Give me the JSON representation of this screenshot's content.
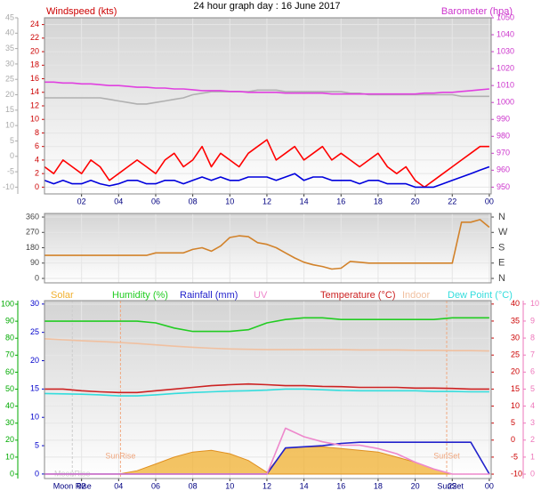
{
  "title": "24 hour graph day : 16 June 2017",
  "chart_data": [
    {
      "type": "line",
      "title": "Windspeed (kts)",
      "y2label": "Barometer (hpa)",
      "grid": true,
      "x": [
        0,
        0.5,
        1,
        1.5,
        2,
        2.5,
        3,
        3.5,
        4,
        4.5,
        5,
        5.5,
        6,
        6.5,
        7,
        7.5,
        8,
        8.5,
        9,
        9.5,
        10,
        10.5,
        11,
        11.5,
        12,
        12.5,
        13,
        13.5,
        14,
        14.5,
        15,
        15.5,
        16,
        16.5,
        17,
        17.5,
        18,
        18.5,
        19,
        19.5,
        20,
        20.5,
        21,
        21.5,
        22,
        22.5,
        23,
        23.5,
        24
      ],
      "xlim": [
        0,
        24.1
      ],
      "xticks": [
        {
          "value": 2,
          "label": "02"
        },
        {
          "value": 4,
          "label": "04"
        },
        {
          "value": 6,
          "label": "06"
        },
        {
          "value": 8,
          "label": "08"
        },
        10,
        12,
        14,
        16,
        18,
        20,
        22,
        {
          "value": 24,
          "label": "00"
        }
      ],
      "ylim": [
        -1,
        25
      ],
      "yticks": [
        0,
        2,
        4,
        6,
        8,
        10,
        12,
        14,
        16,
        18,
        20,
        22,
        24
      ],
      "ycolor": "#cc0000",
      "y2lim": [
        946,
        1050
      ],
      "y2ticks": [
        950,
        960,
        970,
        980,
        990,
        1000,
        1010,
        1020,
        1030,
        1040,
        1050
      ],
      "y2color": "#cc33cc",
      "y3lim": [
        -12.2,
        45
      ],
      "y3ticks": [
        -10,
        -5,
        0,
        5,
        10,
        15,
        20,
        25,
        30,
        35,
        40,
        45
      ],
      "y3color": "#aaaaaa",
      "series": [
        {
          "color": "#b0b0b0",
          "axis": "y3",
          "values": [
            19,
            19,
            19,
            19,
            19,
            19,
            19,
            18.5,
            18,
            17.5,
            17,
            17,
            17.5,
            18,
            18.5,
            19,
            20,
            20.5,
            21,
            21,
            21,
            21,
            21,
            21.5,
            21.5,
            21.5,
            21,
            21,
            21,
            21,
            21,
            21,
            21,
            20.5,
            20.5,
            20,
            20,
            20,
            20,
            20,
            20,
            20,
            20,
            20,
            20,
            19.5,
            19.5,
            19.5,
            19.5
          ]
        },
        {
          "color": "#e040e0",
          "axis": "y2",
          "values": [
            1012,
            1012,
            1011.5,
            1011.5,
            1011,
            1011,
            1010.5,
            1010,
            1010,
            1009.5,
            1009,
            1009,
            1008.5,
            1008.5,
            1008,
            1008,
            1007.5,
            1007,
            1007,
            1007,
            1006.5,
            1006.5,
            1006,
            1006,
            1006,
            1006,
            1005.5,
            1005.5,
            1005.5,
            1005.5,
            1005.5,
            1005,
            1005,
            1005,
            1005,
            1005,
            1005,
            1005,
            1005,
            1005,
            1005,
            1005.5,
            1005.5,
            1006,
            1006,
            1006.5,
            1007,
            1007.5,
            1008
          ]
        },
        {
          "color": "#ff0000",
          "values": [
            3,
            2,
            4,
            3,
            2,
            4,
            3,
            1,
            2,
            3,
            4,
            3,
            2,
            4,
            5,
            3,
            4,
            6,
            3,
            5,
            4,
            3,
            5,
            6,
            7,
            4,
            5,
            6,
            4,
            5,
            6,
            4,
            5,
            4,
            3,
            4,
            5,
            3,
            2,
            3,
            1,
            0,
            1,
            2,
            3,
            4,
            5,
            6,
            6
          ]
        },
        {
          "color": "#0000dd",
          "values": [
            1,
            0.5,
            1,
            0.5,
            0.5,
            1,
            0.5,
            0.2,
            0.5,
            1,
            1,
            0.5,
            0.5,
            1,
            1,
            0.5,
            1,
            1.5,
            1,
            1.5,
            1,
            1,
            1.5,
            1.5,
            1.5,
            1,
            1.5,
            2,
            1,
            1.5,
            1.5,
            1,
            1,
            1,
            0.5,
            1,
            1,
            0.5,
            0.5,
            0.5,
            0,
            0,
            0,
            0.5,
            1,
            1.5,
            2,
            2.5,
            3
          ]
        }
      ]
    },
    {
      "type": "line",
      "grid": true,
      "x": [
        0,
        0.5,
        1,
        1.5,
        2,
        2.5,
        3,
        3.5,
        4,
        4.5,
        5,
        5.5,
        6,
        6.5,
        7,
        7.5,
        8,
        8.5,
        9,
        9.5,
        10,
        10.5,
        11,
        11.5,
        12,
        12.5,
        13,
        13.5,
        14,
        14.5,
        15,
        15.5,
        16,
        16.5,
        17,
        17.5,
        18,
        18.5,
        19,
        19.5,
        20,
        20.5,
        21,
        21.5,
        22,
        22.5,
        23,
        23.5,
        24
      ],
      "xlim": [
        0,
        24.1
      ],
      "ylim": [
        -26,
        381
      ],
      "yticks": [
        0,
        90,
        180,
        270,
        360
      ],
      "ycolor": "#444444",
      "y2lim": [
        -26,
        381
      ],
      "y2ticks": [
        {
          "value": 0,
          "label": "N"
        },
        {
          "value": 90,
          "label": "E"
        },
        {
          "value": 180,
          "label": "S"
        },
        {
          "value": 270,
          "label": "W"
        },
        {
          "value": 360,
          "label": "N"
        }
      ],
      "y2color": "#444444",
      "series": [
        {
          "color": "#d2822a",
          "values": [
            135,
            135,
            135,
            135,
            135,
            135,
            135,
            135,
            135,
            135,
            135,
            135,
            150,
            150,
            150,
            150,
            170,
            180,
            160,
            190,
            240,
            250,
            245,
            210,
            200,
            180,
            150,
            120,
            95,
            80,
            70,
            55,
            60,
            100,
            95,
            90,
            90,
            90,
            90,
            90,
            90,
            90,
            90,
            90,
            90,
            330,
            330,
            345,
            300
          ]
        }
      ]
    },
    {
      "type": "line",
      "grid": true,
      "x": [
        0,
        1,
        2,
        3,
        4,
        5,
        6,
        7,
        8,
        9,
        10,
        11,
        12,
        13,
        14,
        15,
        16,
        17,
        18,
        19,
        20,
        21,
        22,
        23,
        24
      ],
      "xlim": [
        0,
        24.1
      ],
      "xticks": [
        {
          "value": 2,
          "label": "02"
        },
        {
          "value": 4,
          "label": "04"
        },
        {
          "value": 6,
          "label": "06"
        },
        {
          "value": 8,
          "label": "08"
        },
        10,
        12,
        14,
        16,
        18,
        20,
        22,
        {
          "value": 24,
          "label": "00"
        }
      ],
      "ylim": [
        -2.6,
        102.1
      ],
      "yticks": [
        0,
        10,
        20,
        30,
        40,
        50,
        60,
        70,
        80,
        90,
        100
      ],
      "ycolor": "#00aa00",
      "y2lim": [
        -11.3,
        41
      ],
      "y2ticks": [
        -10,
        -5,
        0,
        5,
        10,
        15,
        20,
        25,
        30,
        35,
        40
      ],
      "y2color": "#cc0000",
      "y3lim": [
        -0.8,
        30.6
      ],
      "y3ticks": [
        0,
        5,
        10,
        15,
        20,
        25,
        30
      ],
      "y3color": "#0000cc",
      "y4lim": [
        -0.26,
        10.2
      ],
      "y4ticks": [
        0,
        1,
        2,
        3,
        4,
        5,
        6,
        7,
        8,
        9,
        10
      ],
      "y4color": "#ee77bb",
      "series": [
        {
          "name": "Solar",
          "color": "#f0b030",
          "axis": "y4",
          "area": true,
          "values": [
            0,
            0,
            0,
            0,
            0,
            0.2,
            0.6,
            1,
            1.3,
            1.4,
            1.2,
            0.8,
            0.1,
            1.5,
            1.6,
            1.6,
            1.5,
            1.4,
            1.3,
            1,
            0.7,
            0.3,
            0,
            0,
            0
          ]
        },
        {
          "name": "Humidity (%)",
          "color": "#22cc22",
          "values": [
            90,
            90,
            90,
            90,
            90,
            90,
            89,
            86,
            84,
            84,
            84,
            85,
            89,
            91,
            92,
            92,
            91,
            91,
            91,
            91,
            91,
            91,
            92,
            92,
            92
          ]
        },
        {
          "name": "Rainfall (mm)",
          "color": "#2222cc",
          "axis": "y3",
          "values": [
            0,
            0,
            0,
            0,
            0,
            0,
            0,
            0,
            0,
            0,
            0,
            0,
            0,
            4.6,
            4.8,
            5,
            5.4,
            5.6,
            5.6,
            5.6,
            5.6,
            5.6,
            5.6,
            5.6,
            0
          ]
        },
        {
          "name": "UV",
          "color": "#ee88cc",
          "axis": "y4",
          "values": [
            0,
            0,
            0,
            0,
            0,
            0,
            0,
            0,
            0,
            0,
            0,
            0,
            0,
            2.7,
            2.2,
            1.9,
            1.7,
            1.7,
            1.5,
            1.2,
            0.7,
            0.3,
            0,
            0,
            0
          ]
        },
        {
          "name": "Temperature (°C)",
          "color": "#cc2222",
          "axis": "y2",
          "values": [
            15,
            15,
            14.5,
            14.2,
            14,
            14,
            14.5,
            15,
            15.5,
            16,
            16.3,
            16.5,
            16.3,
            16,
            16,
            15.8,
            15.7,
            15.5,
            15.5,
            15.5,
            15.3,
            15.3,
            15.2,
            15,
            15
          ]
        },
        {
          "name": "Indoor",
          "color": "#f0c0a0",
          "axis": "y2",
          "values": [
            29.8,
            29.5,
            29.2,
            29,
            28.7,
            28.4,
            28,
            27.6,
            27.3,
            27,
            26.8,
            26.7,
            26.6,
            26.6,
            26.6,
            26.6,
            26.6,
            26.5,
            26.5,
            26.5,
            26.4,
            26.4,
            26.3,
            26.3,
            26.2
          ]
        },
        {
          "name": "Dew Point (°C)",
          "color": "#33dddd",
          "axis": "y2",
          "values": [
            13.7,
            13.6,
            13.5,
            13.3,
            13,
            13,
            13.3,
            13.7,
            14,
            14.2,
            14.4,
            14.5,
            14.7,
            15,
            15,
            14.8,
            14.6,
            14.5,
            14.5,
            14.5,
            14.5,
            14.3,
            14.3,
            14.2,
            14.2
          ]
        }
      ],
      "annotations": [
        {
          "text": "MoonRise",
          "x": 1.5,
          "color": "#cccccc"
        },
        {
          "text": "SunRise",
          "x": 4.1,
          "color": "#f0a880"
        },
        {
          "text": "SunSet",
          "x": 21.7,
          "color": "#f0a880"
        }
      ],
      "events_below": [
        {
          "text": "Moon Rise",
          "x": 1.5,
          "color": "#000080"
        },
        {
          "text": "SunSet",
          "x": 21.9,
          "color": "#000080"
        }
      ]
    }
  ]
}
